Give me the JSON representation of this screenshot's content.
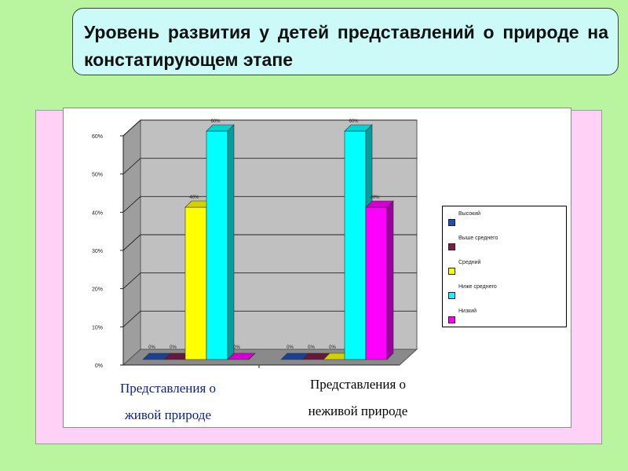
{
  "title": "Уровень развития у детей представлений о природе на констатирующем этапе",
  "chart_data": {
    "type": "bar",
    "categories": [
      "Представления о живой природе",
      "Представления о неживой природе"
    ],
    "category_lines": [
      [
        "Представления о",
        "живой природе"
      ],
      [
        "Представления о",
        "неживой природе"
      ]
    ],
    "series": [
      {
        "name": "Высокий",
        "values": [
          0,
          0
        ],
        "labels": [
          "0%",
          "0%"
        ],
        "color": "#1f4fb4"
      },
      {
        "name": "Выше среднего",
        "values": [
          0,
          0
        ],
        "labels": [
          "0%",
          "0%"
        ],
        "color": "#7a1f4a"
      },
      {
        "name": "Средний",
        "values": [
          40,
          0
        ],
        "labels": [
          "40%",
          "0%"
        ],
        "color": "#ffff00"
      },
      {
        "name": "Ниже среднего",
        "values": [
          60,
          60
        ],
        "labels": [
          "60%",
          "60%"
        ],
        "color": "#00ffff"
      },
      {
        "name": "Низкий",
        "values": [
          0,
          40
        ],
        "labels": [
          "0%",
          "40%"
        ],
        "color": "#ff00ff"
      }
    ],
    "yticks": [
      "0%",
      "10%",
      "20%",
      "30%",
      "40%",
      "50%",
      "60%"
    ],
    "ylim": [
      0,
      60
    ],
    "grid": true,
    "legend_position": "right",
    "three_d": true
  }
}
